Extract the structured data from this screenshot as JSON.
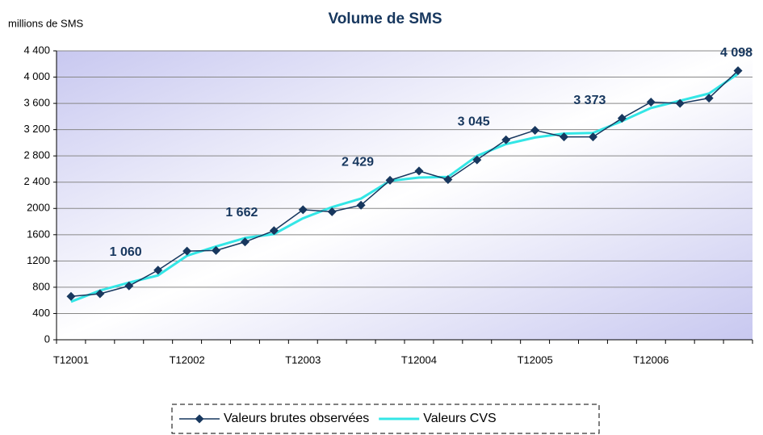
{
  "chart_data": {
    "type": "line",
    "title": "Volume de SMS",
    "unit_label": "millions de SMS",
    "categories": [
      "T12001",
      null,
      null,
      null,
      "T12002",
      null,
      null,
      null,
      "T12003",
      null,
      null,
      null,
      "T12004",
      null,
      null,
      null,
      "T12005",
      null,
      null,
      null,
      "T12006",
      null,
      null,
      null
    ],
    "series": [
      {
        "name": "Valeurs brutes observées",
        "color": "#17375e",
        "marker": "diamond",
        "values": [
          660,
          700,
          820,
          1060,
          1350,
          1360,
          1490,
          1662,
          1980,
          1950,
          2050,
          2429,
          2570,
          2440,
          2740,
          3045,
          3190,
          3090,
          3090,
          3373,
          3620,
          3600,
          3680,
          4098
        ],
        "value_labels": [
          null,
          null,
          null,
          "1 060",
          null,
          null,
          null,
          "1 662",
          null,
          null,
          null,
          "2 429",
          null,
          null,
          null,
          "3 045",
          null,
          null,
          null,
          "3 373",
          null,
          null,
          null,
          "4 098"
        ]
      },
      {
        "name": "Valeurs CVS",
        "color": "#33e6e6",
        "values": [
          580,
          750,
          870,
          980,
          1280,
          1420,
          1550,
          1610,
          1850,
          2020,
          2150,
          2420,
          2470,
          2480,
          2800,
          2980,
          3080,
          3140,
          3150,
          3330,
          3530,
          3640,
          3750,
          4050
        ]
      }
    ],
    "ylim": [
      0,
      4400
    ],
    "yticks": [
      0,
      400,
      800,
      1200,
      1600,
      2000,
      {
        "value": 2400,
        "label": "2 400"
      },
      {
        "value": 2800,
        "label": "2 800"
      },
      {
        "value": 3200,
        "label": "3 200"
      },
      {
        "value": 3600,
        "label": "3 600"
      },
      {
        "value": 4000,
        "label": "4 000"
      },
      {
        "value": 4400,
        "label": "4 400"
      }
    ],
    "grid": true,
    "legend": "bottom"
  }
}
